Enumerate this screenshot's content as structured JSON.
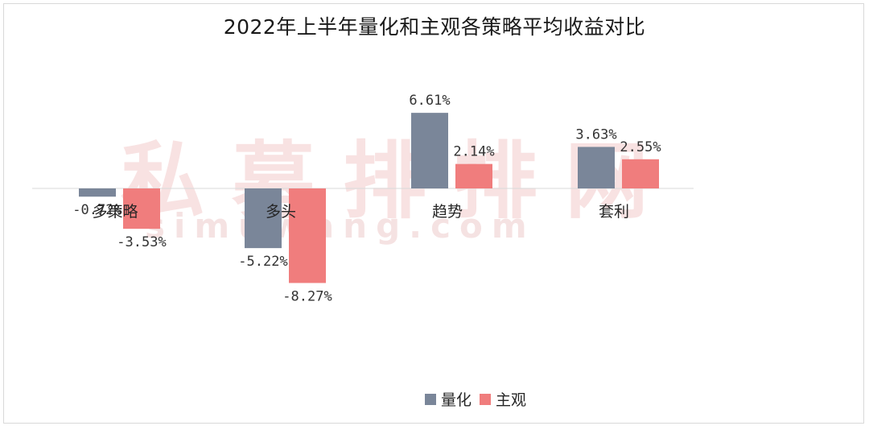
{
  "watermark": {
    "cn": "私募排排网",
    "en": "simuwang.com"
  },
  "chart_data": {
    "type": "bar",
    "title": "2022年上半年量化和主观各策略平均收益对比",
    "categories": [
      "多策略",
      "多头",
      "趋势",
      "套利"
    ],
    "series": [
      {
        "name": "量化",
        "color": "#7a8699",
        "values": [
          -0.72,
          -5.22,
          6.61,
          3.63
        ],
        "labels": [
          "-0.72%",
          "-5.22%",
          "6.61%",
          "3.63%"
        ]
      },
      {
        "name": "主观",
        "color": "#f07d7d",
        "values": [
          -3.53,
          -8.27,
          2.14,
          2.55
        ],
        "labels": [
          "-3.53%",
          "-8.27%",
          "2.14%",
          "2.55%"
        ]
      }
    ],
    "ylim": [
      -8.27,
      6.61
    ],
    "xlabel": "",
    "ylabel": "",
    "grid": false,
    "legend": "bottom"
  }
}
